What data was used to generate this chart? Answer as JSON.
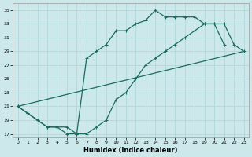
{
  "xlabel": "Humidex (Indice chaleur)",
  "xlim": [
    -0.5,
    23.5
  ],
  "ylim": [
    16.5,
    36
  ],
  "xticks": [
    0,
    1,
    2,
    3,
    4,
    5,
    6,
    7,
    8,
    9,
    10,
    11,
    12,
    13,
    14,
    15,
    16,
    17,
    18,
    19,
    20,
    21,
    22,
    23
  ],
  "yticks": [
    17,
    19,
    21,
    23,
    25,
    27,
    29,
    31,
    33,
    35
  ],
  "bg_color": "#cce8ea",
  "grid_color": "#b0d8dc",
  "line_color": "#1a6b5e",
  "line1": {
    "x": [
      0,
      1,
      2,
      3,
      4,
      5,
      6,
      7,
      8,
      9,
      10,
      11,
      12,
      13,
      14,
      15,
      16,
      17,
      18,
      19,
      20,
      21
    ],
    "y": [
      21,
      20,
      19,
      18,
      18,
      18,
      17,
      28,
      29,
      30,
      32,
      32,
      33,
      33.5,
      35,
      34,
      34,
      34,
      34,
      33,
      33,
      30
    ]
  },
  "line2": {
    "x": [
      0,
      1,
      2,
      3,
      4,
      5,
      6,
      7,
      8,
      9,
      10,
      11,
      12,
      13,
      14,
      15,
      16,
      17,
      18,
      19,
      20,
      21,
      22,
      23
    ],
    "y": [
      21,
      20,
      19,
      18,
      18,
      17,
      17,
      17,
      18,
      19,
      22,
      23,
      25,
      27,
      28,
      29,
      30,
      31,
      32,
      33,
      33,
      33,
      30,
      29
    ]
  },
  "line3": {
    "x": [
      0,
      23
    ],
    "y": [
      21,
      29
    ]
  }
}
